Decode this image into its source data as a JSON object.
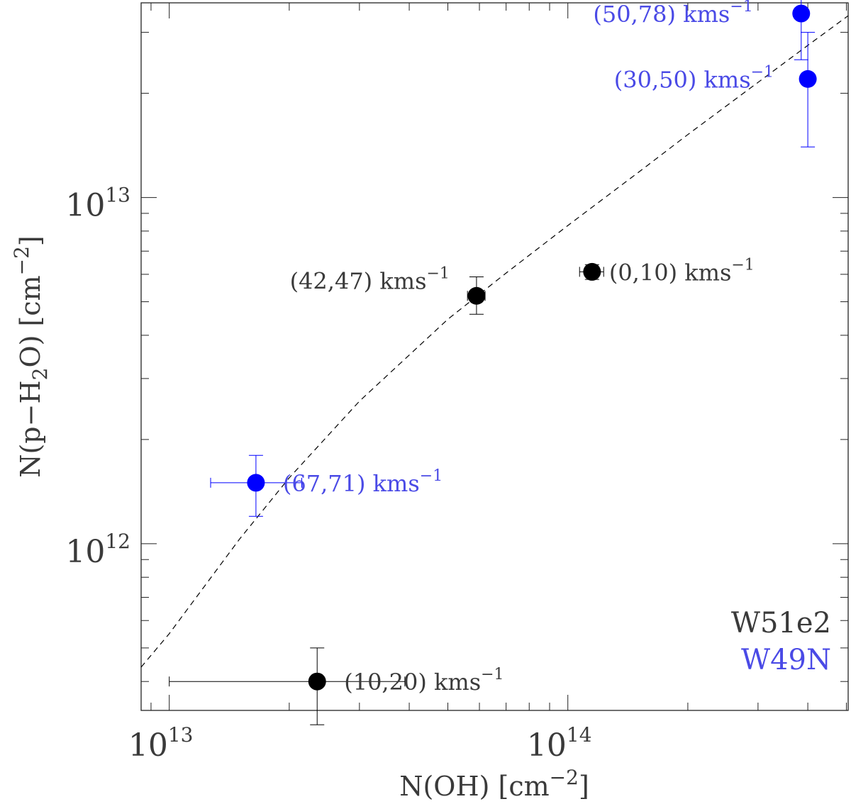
{
  "chart_data": {
    "type": "scatter",
    "x_scale": "log",
    "y_scale": "log",
    "xlim": [
      8500000000000.0,
      505000000000000.0
    ],
    "ylim": [
      330000000000.0,
      36500000000000.0
    ],
    "xlabel": {
      "prefix": "N(OH) [cm",
      "sup": "−2",
      "suffix": "]"
    },
    "ylabel": {
      "prefix": "N(p−H",
      "sub": "2",
      "mid": "O) [cm",
      "sup": "−2",
      "suffix": "]"
    },
    "x_ticks": [
      {
        "value": 10000000000000.0,
        "base": "10",
        "exp": "13"
      },
      {
        "value": 100000000000000.0,
        "base": "10",
        "exp": "14"
      }
    ],
    "y_ticks": [
      {
        "value": 1000000000000.0,
        "base": "10",
        "exp": "12"
      },
      {
        "value": 10000000000000.0,
        "base": "10",
        "exp": "13"
      }
    ],
    "legend": {
      "placement": "bottom-right",
      "entries": [
        {
          "label": "W51e2",
          "color": "#3a3a3a"
        },
        {
          "label": "W49N",
          "color": "#4a4ae6"
        }
      ]
    },
    "series": [
      {
        "name": "W51e2",
        "color": "#000000",
        "points": [
          {
            "label": "(10,20) kms",
            "label_sup": "−1",
            "x": 23500000000000.0,
            "y": 400000000000.0,
            "xerr": [
              10000000000000.0,
              39000000000000.0
            ],
            "yerr": [
              300000000000.0,
              500000000000.0
            ]
          },
          {
            "label": "(42,47) kms",
            "label_sup": "−1",
            "x": 59000000000000.0,
            "y": 5200000000000.0,
            "xerr": [
              56000000000000.0,
              62000000000000.0
            ],
            "yerr": [
              4600000000000.0,
              5900000000000.0
            ]
          },
          {
            "label": "(0,10) kms",
            "label_sup": "−1",
            "x": 115000000000000.0,
            "y": 6100000000000.0,
            "xerr": [
              107000000000000.0,
              123000000000000.0
            ],
            "yerr": [
              5800000000000.0,
              6400000000000.0
            ]
          }
        ]
      },
      {
        "name": "W49N",
        "color": "#0000ff",
        "points": [
          {
            "label": "(67,71) kms",
            "label_sup": "−1",
            "x": 16500000000000.0,
            "y": 1500000000000.0,
            "xerr": [
              12700000000000.0,
              21500000000000.0
            ],
            "yerr": [
              1200000000000.0,
              1800000000000.0
            ]
          },
          {
            "label": "(50,78) kms",
            "label_sup": "−1",
            "x": 385000000000000.0,
            "y": 34000000000000.0,
            "xerr": [
              382000000000000.0,
              388000000000000.0
            ],
            "yerr": [
              25000000000000.0,
              42000000000000.0
            ]
          },
          {
            "label": "(30,50) kms",
            "label_sup": "−1",
            "x": 400000000000000.0,
            "y": 22000000000000.0,
            "xerr": [
              397000000000000.0,
              403000000000000.0
            ],
            "yerr": [
              14000000000000.0,
              30000000000000.0
            ]
          }
        ]
      }
    ],
    "fit_curve": {
      "style": "dashed",
      "color": "#000000",
      "points": [
        [
          8500000000000.0,
          440000000000.0
        ],
        [
          10000000000000.0,
          550000000000.0
        ],
        [
          15000000000000.0,
          1030000000000.0
        ],
        [
          20000000000000.0,
          1550000000000.0
        ],
        [
          30000000000000.0,
          2580000000000.0
        ],
        [
          50000000000000.0,
          4450000000000.0
        ],
        [
          70000000000000.0,
          6050000000000.0
        ],
        [
          100000000000000.0,
          8300000000000.0
        ],
        [
          150000000000000.0,
          11800000000000.0
        ],
        [
          200000000000000.0,
          15200000000000.0
        ],
        [
          300000000000000.0,
          21500000000000.0
        ],
        [
          400000000000000.0,
          27500000000000.0
        ],
        [
          505000000000000.0,
          33500000000000.0
        ]
      ]
    }
  }
}
